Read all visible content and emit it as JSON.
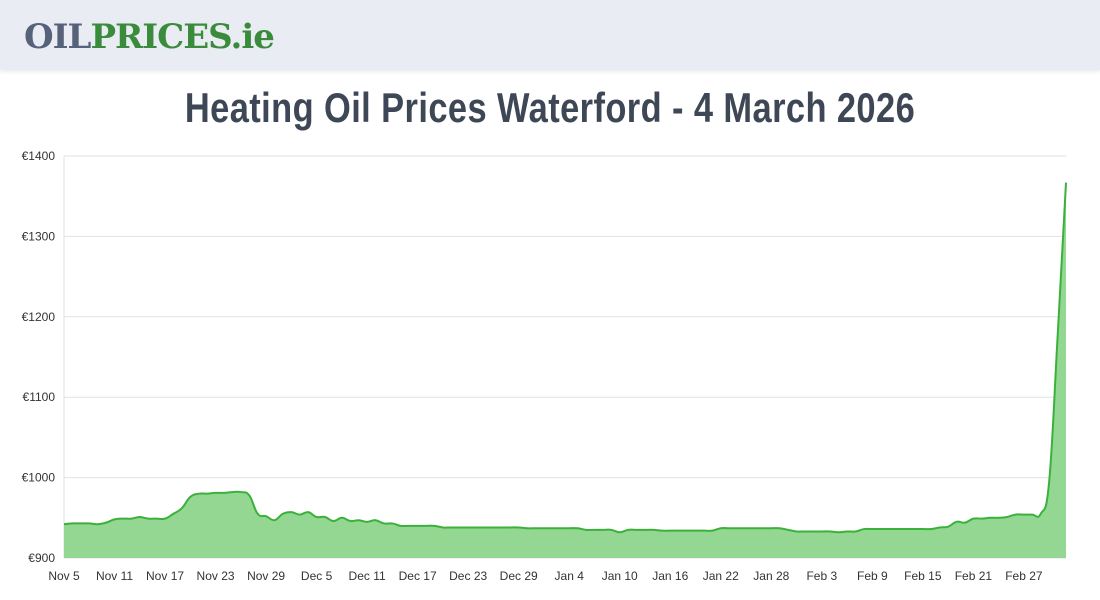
{
  "header": {
    "logo_part1": "OIL",
    "logo_part2": "PRICES.ie"
  },
  "page_title": "Heating Oil Prices Waterford - 4 March 2026",
  "chart_data": {
    "type": "area",
    "title": "Heating Oil Prices Waterford - 4 March 2026",
    "xlabel": "",
    "ylabel": "",
    "ylim": [
      900,
      1400
    ],
    "y_ticks": [
      "€900",
      "€1000",
      "€1100",
      "€1200",
      "€1300",
      "€1400"
    ],
    "x_ticks": [
      "Nov 5",
      "Nov 11",
      "Nov 17",
      "Nov 23",
      "Nov 29",
      "Dec 5",
      "Dec 11",
      "Dec 17",
      "Dec 23",
      "Dec 29",
      "Jan 4",
      "Jan 10",
      "Jan 16",
      "Jan 22",
      "Jan 28",
      "Feb 3",
      "Feb 9",
      "Feb 15",
      "Feb 21",
      "Feb 27"
    ],
    "grid": true,
    "colors": {
      "line": "#3bb13b",
      "fill": "#93d792",
      "grid": "#e2e2e2"
    },
    "x": [
      "Nov 5",
      "Nov 6",
      "Nov 7",
      "Nov 8",
      "Nov 9",
      "Nov 10",
      "Nov 11",
      "Nov 12",
      "Nov 13",
      "Nov 14",
      "Nov 15",
      "Nov 16",
      "Nov 17",
      "Nov 18",
      "Nov 19",
      "Nov 20",
      "Nov 21",
      "Nov 22",
      "Nov 23",
      "Nov 24",
      "Nov 25",
      "Nov 26",
      "Nov 27",
      "Nov 28",
      "Nov 29",
      "Nov 30",
      "Dec 1",
      "Dec 2",
      "Dec 3",
      "Dec 4",
      "Dec 5",
      "Dec 6",
      "Dec 7",
      "Dec 8",
      "Dec 9",
      "Dec 10",
      "Dec 11",
      "Dec 12",
      "Dec 13",
      "Dec 14",
      "Dec 15",
      "Dec 16",
      "Dec 17",
      "Dec 18",
      "Dec 19",
      "Dec 20",
      "Dec 21",
      "Dec 22",
      "Dec 23",
      "Dec 24",
      "Dec 25",
      "Dec 26",
      "Dec 27",
      "Dec 28",
      "Dec 29",
      "Dec 30",
      "Dec 31",
      "Jan 1",
      "Jan 2",
      "Jan 3",
      "Jan 4",
      "Jan 5",
      "Jan 6",
      "Jan 7",
      "Jan 8",
      "Jan 9",
      "Jan 10",
      "Jan 11",
      "Jan 12",
      "Jan 13",
      "Jan 14",
      "Jan 15",
      "Jan 16",
      "Jan 17",
      "Jan 18",
      "Jan 19",
      "Jan 20",
      "Jan 21",
      "Jan 22",
      "Jan 23",
      "Jan 24",
      "Jan 25",
      "Jan 26",
      "Jan 27",
      "Jan 28",
      "Jan 29",
      "Jan 30",
      "Jan 31",
      "Feb 1",
      "Feb 2",
      "Feb 3",
      "Feb 4",
      "Feb 5",
      "Feb 6",
      "Feb 7",
      "Feb 8",
      "Feb 9",
      "Feb 10",
      "Feb 11",
      "Feb 12",
      "Feb 13",
      "Feb 14",
      "Feb 15",
      "Feb 16",
      "Feb 17",
      "Feb 18",
      "Feb 19",
      "Feb 20",
      "Feb 21",
      "Feb 22",
      "Feb 23",
      "Feb 24",
      "Feb 25",
      "Feb 26",
      "Feb 27",
      "Feb 28",
      "Mar 1",
      "Mar 2",
      "Mar 3",
      "Mar 4"
    ],
    "values": [
      942,
      943,
      943,
      943,
      942,
      944,
      948,
      949,
      949,
      951,
      949,
      949,
      949,
      955,
      962,
      976,
      980,
      980,
      981,
      981,
      982,
      982,
      978,
      955,
      952,
      947,
      955,
      957,
      954,
      957,
      951,
      951,
      946,
      950,
      946,
      947,
      945,
      947,
      943,
      943,
      940,
      940,
      940,
      940,
      940,
      938,
      938,
      938,
      938,
      938,
      938,
      938,
      938,
      938,
      938,
      937,
      937,
      937,
      937,
      937,
      937,
      937,
      935,
      935,
      935,
      935,
      932,
      935,
      935,
      935,
      935,
      934,
      934,
      934,
      934,
      934,
      934,
      934,
      937,
      937,
      937,
      937,
      937,
      937,
      937,
      937,
      935,
      933,
      933,
      933,
      933,
      933,
      932,
      933,
      933,
      936,
      936,
      936,
      936,
      936,
      936,
      936,
      936,
      936,
      938,
      939,
      945,
      944,
      949,
      949,
      950,
      950,
      951,
      954,
      954,
      954,
      955,
      995,
      1175,
      1367
    ]
  }
}
